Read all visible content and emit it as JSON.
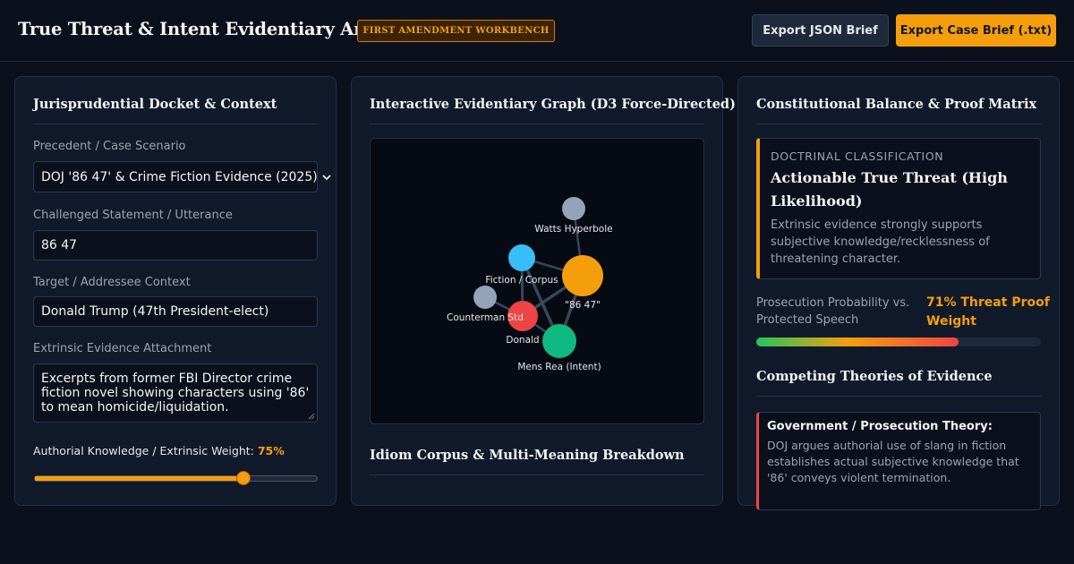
{
  "header": {
    "title": "True Threat & Intent Evidentiary Analyzer",
    "badge": "FIRST AMENDMENT WORKBENCH",
    "export_json_label": "Export JSON Brief",
    "export_txt_label": "Export Case Brief (.txt)"
  },
  "docket": {
    "panel_title": "Jurisprudential Docket & Context",
    "precedent_label": "Precedent / Case Scenario",
    "precedent_value": "DOJ '86 47' & Crime Fiction Evidence (2025)",
    "statement_label": "Challenged Statement / Utterance",
    "statement_value": "86 47",
    "target_label": "Target / Addressee Context",
    "target_value": "Donald Trump (47th President-elect)",
    "evidence_label": "Extrinsic Evidence Attachment",
    "evidence_value": "Excerpts from former FBI Director crime fiction novel showing characters using '86' to mean homicide/liquidation.",
    "weight_label": "Authorial Knowledge / Extrinsic Weight:",
    "weight_value": "75%",
    "weight_fraction": 0.75
  },
  "graph": {
    "panel_title": "Interactive Evidentiary Graph (D3 Force-Directed)",
    "nodes": [
      {
        "id": "watts",
        "label": "Watts Hyperbole",
        "color": "#94a3b8"
      },
      {
        "id": "fiction",
        "label": "Fiction / Corpus",
        "color": "#38bdf8"
      },
      {
        "id": "utterance",
        "label": "\"86 47\"",
        "color": "#f59e0b"
      },
      {
        "id": "counterman",
        "label": "Counterman Std",
        "color": "#94a3b8"
      },
      {
        "id": "donald",
        "label": "Donald",
        "color": "#ef4444"
      },
      {
        "id": "mensrea",
        "label": "Mens Rea (Intent)",
        "color": "#10b981"
      }
    ],
    "links": [
      [
        "watts",
        "utterance"
      ],
      [
        "fiction",
        "utterance"
      ],
      [
        "fiction",
        "mensrea"
      ],
      [
        "donald",
        "utterance"
      ],
      [
        "mensrea",
        "utterance"
      ],
      [
        "counterman",
        "donald"
      ],
      [
        "donald",
        "mensrea"
      ],
      [
        "fiction",
        "donald"
      ]
    ],
    "corpus_title": "Idiom Corpus & Multi-Meaning Breakdown"
  },
  "matrix": {
    "panel_title": "Constitutional Balance & Proof Matrix",
    "classification_kicker": "DOCTRINAL CLASSIFICATION",
    "classification_head": "Actionable True Threat (High Likelihood)",
    "classification_desc": "Extrinsic evidence strongly supports subjective knowledge/recklessness of threatening character.",
    "prob_label": "Prosecution Probability vs. Protected Speech",
    "prob_value": "71% Threat Proof Weight",
    "prob_fraction": 0.71,
    "theories_title": "Competing Theories of Evidence",
    "gov_theory_head": "Government / Prosecution Theory:",
    "gov_theory_body": "DOJ argues authorial use of slang in fiction establishes actual subjective knowledge that '86' conveys violent termination."
  }
}
